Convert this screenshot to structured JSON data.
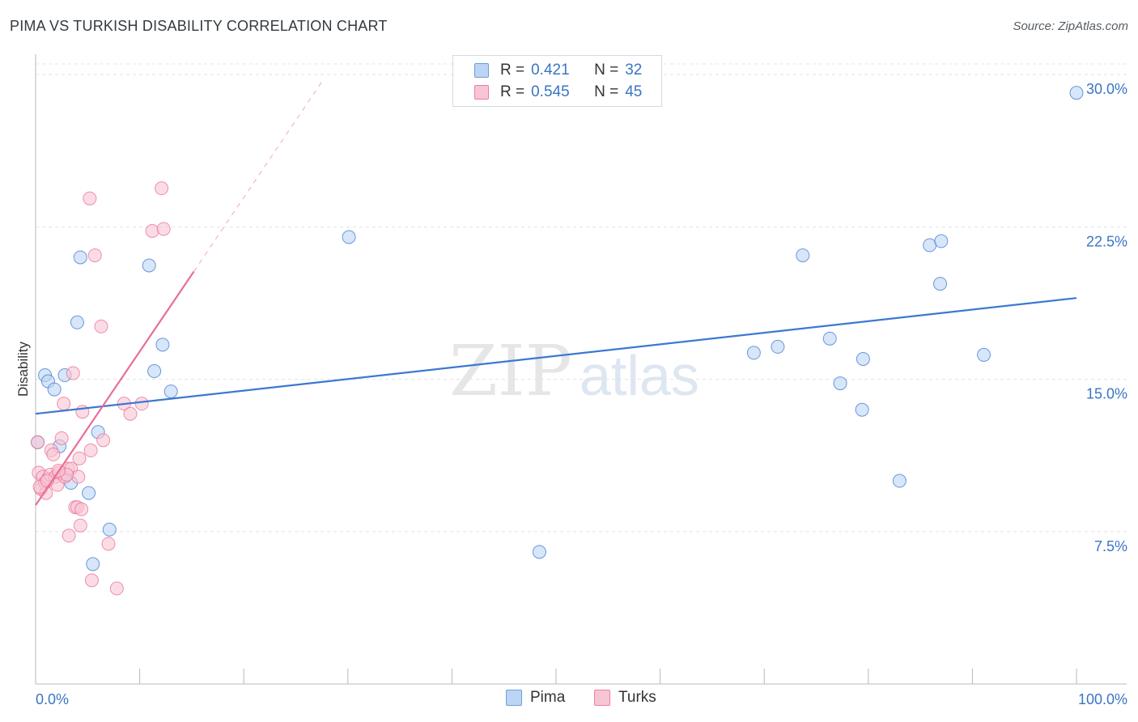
{
  "title": "PIMA VS TURKISH DISABILITY CORRELATION CHART",
  "source": "Source: ZipAtlas.com",
  "watermark": {
    "zip": "ZIP",
    "atlas": "atlas"
  },
  "legend": {
    "series": [
      {
        "name": "Pima",
        "r_label": "R =",
        "r_value": "0.421",
        "n_label": "N =",
        "n_value": "32",
        "color": "#6c9edb",
        "fill": "#bcd5f4"
      },
      {
        "name": "Turks",
        "r_label": "R =",
        "r_value": "0.545",
        "n_label": "N =",
        "n_value": "45",
        "color": "#ea7fa0",
        "fill": "#f8c5d4"
      }
    ]
  },
  "chart_data": {
    "type": "scatter",
    "title": "PIMA VS TURKISH DISABILITY CORRELATION CHART",
    "xlabel": "",
    "ylabel": "Disability",
    "xlim": [
      0,
      100
    ],
    "ylim": [
      0,
      31
    ],
    "x_tick_labels": [
      "0.0%",
      "100.0%"
    ],
    "y_ticks": [
      7.5,
      15.0,
      22.5,
      30.0
    ],
    "y_tick_labels": [
      "7.5%",
      "15.0%",
      "22.5%",
      "30.0%"
    ],
    "grid": true,
    "series": [
      {
        "name": "Pima",
        "color": "#3c78d0",
        "fill": "#bcd5f4",
        "trend": {
          "x0": 0,
          "y0": 13.3,
          "x1": 100,
          "y1": 19.0
        },
        "points": [
          [
            0.2,
            11.9
          ],
          [
            0.9,
            15.2
          ],
          [
            1.2,
            14.9
          ],
          [
            1.8,
            14.5
          ],
          [
            2.3,
            11.7
          ],
          [
            2.8,
            15.2
          ],
          [
            3.4,
            9.9
          ],
          [
            4.0,
            17.8
          ],
          [
            4.3,
            21.0
          ],
          [
            5.1,
            9.4
          ],
          [
            5.5,
            5.9
          ],
          [
            6.0,
            12.4
          ],
          [
            7.1,
            7.6
          ],
          [
            10.9,
            20.6
          ],
          [
            11.4,
            15.4
          ],
          [
            12.2,
            16.7
          ],
          [
            13.0,
            14.4
          ],
          [
            30.1,
            22.0
          ],
          [
            48.4,
            6.5
          ],
          [
            69.0,
            16.3
          ],
          [
            71.3,
            16.6
          ],
          [
            73.7,
            21.1
          ],
          [
            76.3,
            17.0
          ],
          [
            77.3,
            14.8
          ],
          [
            79.4,
            13.5
          ],
          [
            79.5,
            16.0
          ],
          [
            83.0,
            10.0
          ],
          [
            85.9,
            21.6
          ],
          [
            86.9,
            19.7
          ],
          [
            87.0,
            21.8
          ],
          [
            91.1,
            16.2
          ],
          [
            100.0,
            29.1
          ]
        ]
      },
      {
        "name": "Turks",
        "color": "#e86e96",
        "fill": "#f8c5d4",
        "trend": {
          "x0": 0,
          "y0": 8.8,
          "x1": 15.2,
          "y1": 20.3,
          "dash_x1": 27.7,
          "dash_y1": 29.8
        },
        "points": [
          [
            0.2,
            11.9
          ],
          [
            0.3,
            10.4
          ],
          [
            0.5,
            9.6
          ],
          [
            0.7,
            10.2
          ],
          [
            0.9,
            9.9
          ],
          [
            1.0,
            9.4
          ],
          [
            1.2,
            10.1
          ],
          [
            1.4,
            10.3
          ],
          [
            1.5,
            11.5
          ],
          [
            1.7,
            11.3
          ],
          [
            1.9,
            10.2
          ],
          [
            2.1,
            9.8
          ],
          [
            2.3,
            10.4
          ],
          [
            2.5,
            12.1
          ],
          [
            2.7,
            13.8
          ],
          [
            2.8,
            10.2
          ],
          [
            3.1,
            10.6
          ],
          [
            3.2,
            7.3
          ],
          [
            3.4,
            10.6
          ],
          [
            3.6,
            15.3
          ],
          [
            3.8,
            8.7
          ],
          [
            4.0,
            8.7
          ],
          [
            4.1,
            10.2
          ],
          [
            4.2,
            11.1
          ],
          [
            4.3,
            7.8
          ],
          [
            4.4,
            8.6
          ],
          [
            4.5,
            13.4
          ],
          [
            5.2,
            23.9
          ],
          [
            5.3,
            11.5
          ],
          [
            5.4,
            5.1
          ],
          [
            5.7,
            21.1
          ],
          [
            6.3,
            17.6
          ],
          [
            6.5,
            12.0
          ],
          [
            7.0,
            6.9
          ],
          [
            7.8,
            4.7
          ],
          [
            8.5,
            13.8
          ],
          [
            9.1,
            13.3
          ],
          [
            10.2,
            13.8
          ],
          [
            11.2,
            22.3
          ],
          [
            12.1,
            24.4
          ],
          [
            12.3,
            22.4
          ],
          [
            0.4,
            9.7
          ],
          [
            1.1,
            10.0
          ],
          [
            3.0,
            10.3
          ],
          [
            2.2,
            10.5
          ]
        ]
      }
    ]
  }
}
